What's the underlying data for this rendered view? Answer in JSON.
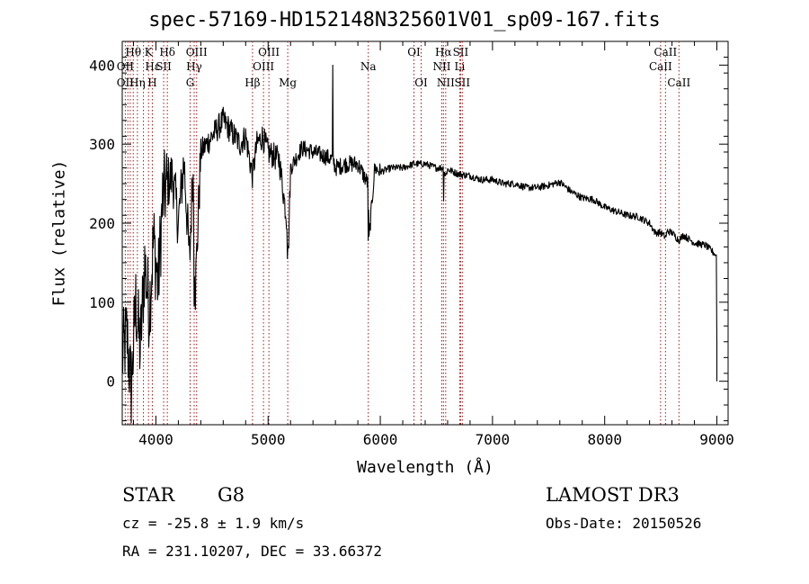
{
  "chart_data": {
    "type": "line",
    "title": "spec-57169-HD152148N325601V01_sp09-167.fits",
    "xlabel": "Wavelength (Å)",
    "ylabel": "Flux (relative)",
    "xlim": [
      3700,
      9100
    ],
    "ylim": [
      -55,
      430
    ],
    "xticks": [
      4000,
      5000,
      6000,
      7000,
      8000,
      9000
    ],
    "yticks": [
      0,
      100,
      200,
      300,
      400
    ],
    "grid": false,
    "series": [
      {
        "name": "flux",
        "color": "#000000",
        "x": [
          3700,
          3740,
          3780,
          3820,
          3860,
          3900,
          3940,
          3980,
          4020,
          4060,
          4100,
          4150,
          4200,
          4250,
          4300,
          4330,
          4350,
          4400,
          4450,
          4500,
          4550,
          4600,
          4650,
          4700,
          4750,
          4800,
          4860,
          4900,
          4950,
          5000,
          5100,
          5170,
          5180,
          5200,
          5300,
          5400,
          5500,
          5580,
          5600,
          5700,
          5800,
          5890,
          5900,
          5950,
          6000,
          6100,
          6200,
          6300,
          6400,
          6500,
          6562,
          6580,
          6600,
          6700,
          6800,
          6900,
          7000,
          7100,
          7200,
          7300,
          7400,
          7500,
          7600,
          7700,
          7800,
          7900,
          8000,
          8100,
          8200,
          8300,
          8400,
          8450,
          8500,
          8542,
          8560,
          8600,
          8662,
          8700,
          8800,
          8900,
          8990,
          9000,
          9000
        ],
        "y": [
          30,
          60,
          -10,
          100,
          40,
          150,
          90,
          180,
          120,
          230,
          250,
          260,
          200,
          280,
          150,
          270,
          110,
          290,
          300,
          310,
          320,
          330,
          320,
          310,
          300,
          310,
          260,
          300,
          310,
          290,
          280,
          200,
          160,
          270,
          295,
          290,
          285,
          280,
          270,
          275,
          275,
          250,
          180,
          270,
          265,
          270,
          270,
          275,
          275,
          270,
          270,
          260,
          268,
          262,
          260,
          255,
          255,
          250,
          250,
          245,
          245,
          248,
          252,
          240,
          232,
          230,
          220,
          215,
          210,
          208,
          200,
          188,
          188,
          182,
          190,
          188,
          178,
          185,
          175,
          172,
          160,
          50,
          0
        ]
      }
    ],
    "line_labels": [
      {
        "text": "Hθ",
        "row": 1,
        "wl": 3798
      },
      {
        "text": "OII",
        "row": 2,
        "wl": 3727
      },
      {
        "text": "OII",
        "row": 3,
        "wl": 3727
      },
      {
        "text": "K",
        "row": 1,
        "wl": 3934
      },
      {
        "text": "Hε",
        "row": 2,
        "wl": 3970
      },
      {
        "text": "Hη",
        "row": 3,
        "wl": 3835
      },
      {
        "text": "SII",
        "row": 2,
        "wl": 4069
      },
      {
        "text": "H",
        "row": 3,
        "wl": 3968
      },
      {
        "text": "Hδ",
        "row": 1,
        "wl": 4102
      },
      {
        "text": "OIII",
        "row": 1,
        "wl": 4363
      },
      {
        "text": "Hγ",
        "row": 2,
        "wl": 4341
      },
      {
        "text": "G",
        "row": 3,
        "wl": 4305
      },
      {
        "text": "Hβ",
        "row": 3,
        "wl": 4861
      },
      {
        "text": "OIII",
        "row": 1,
        "wl": 5007
      },
      {
        "text": "OIII",
        "row": 2,
        "wl": 4959
      },
      {
        "text": "Mg",
        "row": 3,
        "wl": 5175
      },
      {
        "text": "Na",
        "row": 2,
        "wl": 5893
      },
      {
        "text": "OI",
        "row": 1,
        "wl": 6300
      },
      {
        "text": "OI",
        "row": 3,
        "wl": 6364
      },
      {
        "text": "Hα",
        "row": 1,
        "wl": 6563
      },
      {
        "text": "SII",
        "row": 1,
        "wl": 6716
      },
      {
        "text": "NII",
        "row": 2,
        "wl": 6548
      },
      {
        "text": "Li",
        "row": 2,
        "wl": 6708
      },
      {
        "text": "NII",
        "row": 3,
        "wl": 6583
      },
      {
        "text": "SII",
        "row": 3,
        "wl": 6731
      },
      {
        "text": "CaII",
        "row": 1,
        "wl": 8542
      },
      {
        "text": "CaII",
        "row": 2,
        "wl": 8498
      },
      {
        "text": "CaII",
        "row": 3,
        "wl": 8662
      }
    ],
    "marker_lines": [
      3727,
      3750,
      3771,
      3798,
      3835,
      3889,
      3934,
      3968,
      4069,
      4102,
      4305,
      4341,
      4363,
      4861,
      4959,
      5007,
      5175,
      5893,
      6300,
      6364,
      6548,
      6563,
      6583,
      6708,
      6716,
      6731,
      8498,
      8542,
      8662
    ]
  },
  "info": {
    "class_label": "STAR",
    "subclass": "G8",
    "survey": "LAMOST DR3",
    "cz_line": "cz = -25.8 ± 1.9 km/s",
    "obs_date": "Obs-Date: 20150526",
    "coords": "RA = 231.10207, DEC =  33.66372"
  }
}
